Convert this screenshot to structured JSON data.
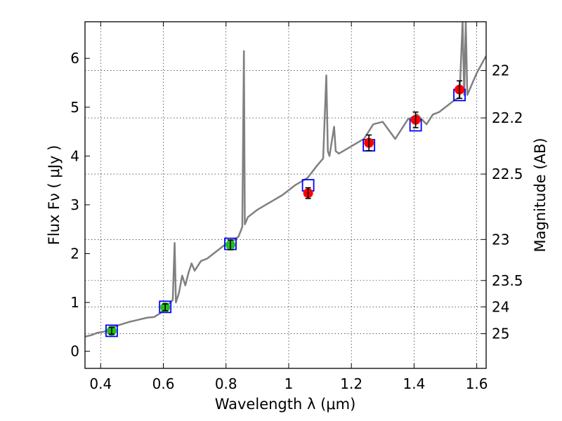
{
  "chart_data": {
    "type": "line",
    "xlabel": "Wavelength  λ (μm)",
    "ylabel": "Flux  Fν  ( μJy )",
    "y2label": "Magnitude (AB)",
    "xlim": [
      0.35,
      1.63
    ],
    "ylim": [
      -0.35,
      6.75
    ],
    "grid": true,
    "xticks": [
      0.4,
      0.6,
      0.8,
      1.0,
      1.2,
      1.4,
      1.6
    ],
    "xtick_labels": [
      "0.4",
      "0.6",
      "0.8",
      "1",
      "1.2",
      "1.4",
      "1.6"
    ],
    "yticks": [
      0,
      1,
      2,
      3,
      4,
      5,
      6
    ],
    "ytick_labels": [
      "0",
      "1",
      "2",
      "3",
      "4",
      "5",
      "6"
    ],
    "y2ticks": [
      {
        "label": "22",
        "flux": 5.75
      },
      {
        "label": "22.2",
        "flux": 4.78
      },
      {
        "label": "22.5",
        "flux": 3.63
      },
      {
        "label": "23",
        "flux": 2.29
      },
      {
        "label": "23.5",
        "flux": 1.45
      },
      {
        "label": "24",
        "flux": 0.91
      },
      {
        "label": "25",
        "flux": 0.36
      }
    ],
    "colors": {
      "model": "#808080",
      "green_points": "#22bb22",
      "red_points": "#ff0000",
      "model_boxes": "#0000ff",
      "errorbars": "#000000"
    },
    "series": [
      {
        "kind": "model-spectrum",
        "x": [
          0.35,
          0.37,
          0.39,
          0.41,
          0.43,
          0.45,
          0.47,
          0.49,
          0.51,
          0.53,
          0.55,
          0.57,
          0.59,
          0.61,
          0.63,
          0.636,
          0.64,
          0.645,
          0.65,
          0.66,
          0.67,
          0.68,
          0.69,
          0.7,
          0.72,
          0.74,
          0.76,
          0.78,
          0.8,
          0.82,
          0.84,
          0.852,
          0.857,
          0.86,
          0.87,
          0.9,
          0.94,
          0.98,
          1.02,
          1.06,
          1.09,
          1.11,
          1.12,
          1.125,
          1.13,
          1.145,
          1.15,
          1.16,
          1.2,
          1.24,
          1.27,
          1.3,
          1.34,
          1.38,
          1.41,
          1.44,
          1.46,
          1.48,
          1.5,
          1.53,
          1.545,
          1.555,
          1.56,
          1.565,
          1.57,
          1.6,
          1.63
        ],
        "y": [
          0.3,
          0.33,
          0.38,
          0.4,
          0.45,
          0.52,
          0.56,
          0.6,
          0.63,
          0.66,
          0.69,
          0.7,
          0.78,
          0.92,
          1.05,
          2.22,
          1.0,
          1.1,
          1.2,
          1.55,
          1.35,
          1.6,
          1.8,
          1.65,
          1.85,
          1.9,
          2.0,
          2.1,
          2.2,
          2.25,
          2.35,
          2.55,
          6.15,
          2.6,
          2.75,
          2.9,
          3.05,
          3.2,
          3.4,
          3.55,
          3.8,
          3.95,
          5.65,
          4.1,
          4.0,
          4.6,
          4.1,
          4.05,
          4.2,
          4.35,
          4.65,
          4.7,
          4.35,
          4.75,
          4.85,
          4.65,
          4.85,
          4.9,
          5.0,
          5.15,
          5.2,
          6.75,
          5.25,
          6.75,
          5.25,
          5.7,
          6.05
        ]
      },
      {
        "kind": "model-photometry-boxes",
        "x": [
          0.435,
          0.606,
          0.814,
          1.062,
          1.256,
          1.405,
          1.545
        ],
        "y": [
          0.42,
          0.91,
          2.2,
          3.4,
          4.22,
          4.63,
          5.25
        ]
      },
      {
        "kind": "observed-green",
        "x": [
          0.435,
          0.606,
          0.814
        ],
        "y": [
          0.42,
          0.9,
          2.18
        ],
        "err": [
          0.07,
          0.07,
          0.1
        ]
      },
      {
        "kind": "observed-red",
        "x": [
          1.062,
          1.256,
          1.405,
          1.545
        ],
        "y": [
          3.24,
          4.27,
          4.74,
          5.36
        ],
        "err": [
          0.11,
          0.16,
          0.16,
          0.18
        ]
      }
    ]
  }
}
